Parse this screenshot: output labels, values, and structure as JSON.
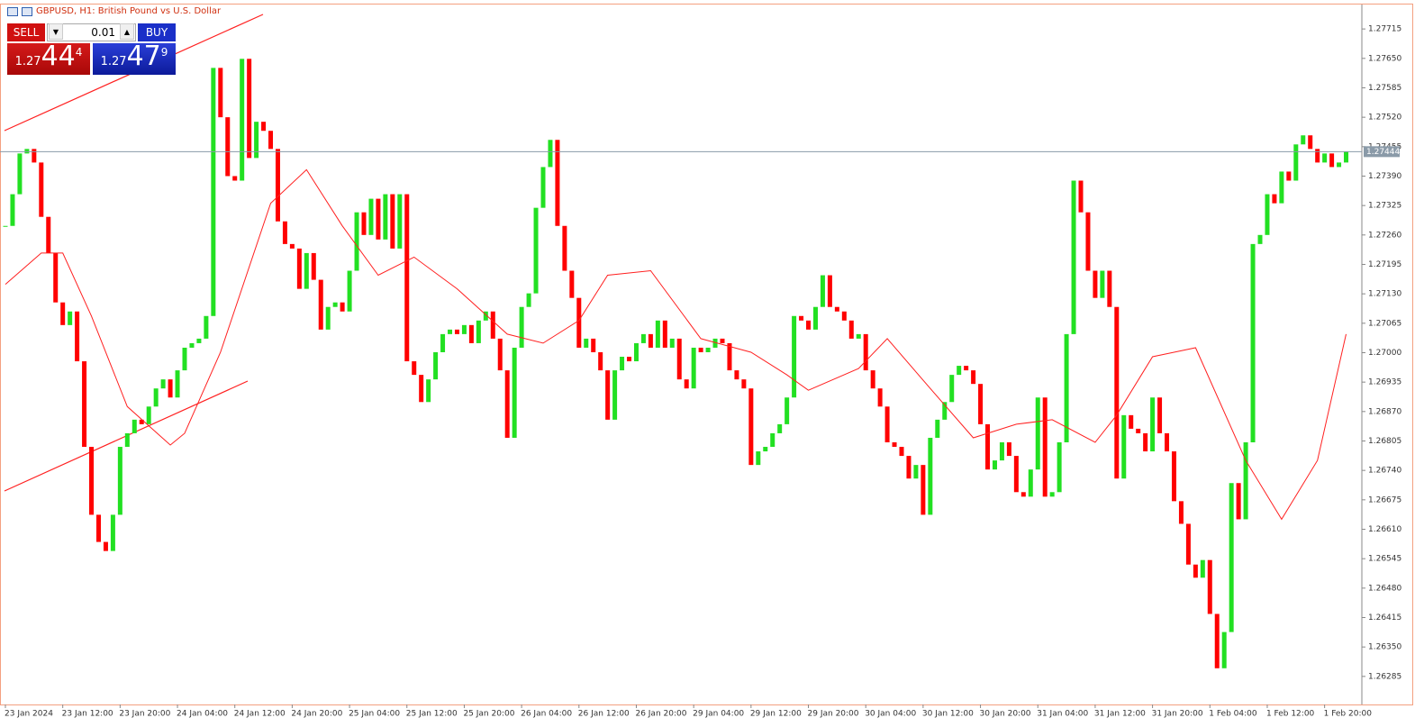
{
  "chart_data": {
    "type": "candlestick",
    "title": "GBPUSD, H1:  British Pound vs U.S. Dollar",
    "up_color": "#22e022",
    "down_color": "#ff0000",
    "close": [
      1.2728,
      1.2735,
      1.2744,
      1.2745,
      1.2742,
      1.273,
      1.2722,
      1.27111,
      1.27061,
      1.27091,
      1.26981,
      1.26792,
      1.26642,
      1.26582,
      1.26562,
      1.26642,
      1.26792,
      1.26822,
      1.26852,
      1.26842,
      1.26881,
      1.26921,
      1.26941,
      1.26901,
      1.26961,
      1.27011,
      1.27021,
      1.27031,
      1.27081,
      1.27629,
      1.2752,
      1.2739,
      1.2738,
      1.27649,
      1.2743,
      1.2751,
      1.2749,
      1.2745,
      1.2729,
      1.2724,
      1.2723,
      1.27141,
      1.2722,
      1.27161,
      1.27051,
      1.27101,
      1.27111,
      1.27091,
      1.27181,
      1.2731,
      1.2726,
      1.2734,
      1.2725,
      1.2735,
      1.2723,
      1.2735,
      1.26981,
      1.26951,
      1.26891,
      1.26941,
      1.27001,
      1.27041,
      1.27051,
      1.27041,
      1.27061,
      1.27021,
      1.27071,
      1.27091,
      1.27031,
      1.26961,
      1.26812,
      1.27011,
      1.27101,
      1.27131,
      1.2732,
      1.2741,
      1.2747,
      1.2728,
      1.27181,
      1.27121,
      1.27011,
      1.27031,
      1.27001,
      1.26961,
      1.26852,
      1.26961,
      1.26991,
      1.26981,
      1.27021,
      1.27041,
      1.27011,
      1.27071,
      1.27011,
      1.27031,
      1.26941,
      1.26921,
      1.27011,
      1.27001,
      1.27011,
      1.27031,
      1.27021,
      1.26961,
      1.26941,
      1.26921,
      1.26752,
      1.26782,
      1.26792,
      1.26822,
      1.26842,
      1.26901,
      1.27081,
      1.27071,
      1.27051,
      1.27101,
      1.27171,
      1.27101,
      1.27091,
      1.27071,
      1.27031,
      1.27041,
      1.26961,
      1.26921,
      1.26881,
      1.26802,
      1.26792,
      1.26772,
      1.26722,
      1.26752,
      1.26642,
      1.26812,
      1.26852,
      1.26891,
      1.26951,
      1.26971,
      1.26961,
      1.26931,
      1.26842,
      1.26742,
      1.26762,
      1.26802,
      1.26772,
      1.26692,
      1.26682,
      1.26742,
      1.26901,
      1.26682,
      1.26692,
      1.26802,
      1.27041,
      1.2738,
      1.2731,
      1.27181,
      1.27121,
      1.27181,
      1.27101,
      1.26722,
      1.26862,
      1.26832,
      1.26822,
      1.26782,
      1.26901,
      1.26822,
      1.26782,
      1.26672,
      1.26622,
      1.26532,
      1.26503,
      1.26542,
      1.26423,
      1.26303,
      1.26383,
      1.26712,
      1.26632,
      1.26802,
      1.2724,
      1.2726,
      1.2735,
      1.2733,
      1.274,
      1.2738,
      1.2746,
      1.2748,
      1.2745,
      1.2742,
      1.2744,
      1.2741,
      1.2742,
      1.27444
    ],
    "ma_color": "#ff2020",
    "ma_index": [
      0,
      5,
      8,
      12,
      17,
      23,
      25,
      30,
      37,
      42,
      47,
      52,
      57,
      63,
      70,
      75,
      80,
      84,
      90,
      97,
      104,
      109,
      112,
      119,
      123,
      129,
      135,
      141,
      146,
      152,
      155,
      160,
      163,
      166,
      173,
      178,
      183,
      187
    ],
    "ma_values": [
      1.27151,
      1.2722,
      1.2722,
      1.27081,
      1.26881,
      1.26796,
      1.26822,
      1.27001,
      1.2733,
      1.27404,
      1.2728,
      1.27171,
      1.27211,
      1.27141,
      1.27041,
      1.27021,
      1.27071,
      1.27171,
      1.27181,
      1.27031,
      1.27001,
      1.26951,
      1.26917,
      1.26965,
      1.27031,
      1.26921,
      1.26812,
      1.26842,
      1.26852,
      1.26802,
      1.26862,
      1.26991,
      1.27001,
      1.27011,
      1.26762,
      1.26632,
      1.26762,
      1.27041
    ],
    "last_price": 1.27444,
    "ylim": [
      1.26223,
      1.27769
    ],
    "yticks": [
      1.27715,
      {
        "value": 1.2765,
        "label": "1.27650"
      },
      1.27585,
      {
        "value": 1.2752,
        "label": "1.27520"
      },
      1.27455,
      {
        "value": 1.2739,
        "label": "1.27390"
      },
      1.27325,
      {
        "value": 1.2726,
        "label": "1.27260"
      },
      1.27195,
      {
        "value": 1.2713,
        "label": "1.27130"
      },
      1.27065,
      {
        "value": 1.27,
        "label": "1.27000"
      },
      1.26935,
      {
        "value": 1.2687,
        "label": "1.26870"
      },
      1.26805,
      {
        "value": 1.2674,
        "label": "1.26740"
      },
      1.26675,
      {
        "value": 1.2661,
        "label": "1.26610"
      },
      1.26545,
      {
        "value": 1.2648,
        "label": "1.26480"
      },
      1.26415,
      {
        "value": 1.2635,
        "label": "1.26350"
      },
      1.26285
    ],
    "xticks": [
      {
        "value": 0,
        "label": "23 Jan 2024"
      },
      {
        "value": 8,
        "label": "23 Jan 12:00"
      },
      {
        "value": 16,
        "label": "23 Jan 20:00"
      },
      {
        "value": 24,
        "label": "24 Jan 04:00"
      },
      {
        "value": 32,
        "label": "24 Jan 12:00"
      },
      {
        "value": 40,
        "label": "24 Jan 20:00"
      },
      {
        "value": 48,
        "label": "25 Jan 04:00"
      },
      {
        "value": 56,
        "label": "25 Jan 12:00"
      },
      {
        "value": 64,
        "label": "25 Jan 20:00"
      },
      {
        "value": 72,
        "label": "26 Jan 04:00"
      },
      {
        "value": 80,
        "label": "26 Jan 12:00"
      },
      {
        "value": 88,
        "label": "26 Jan 20:00"
      },
      {
        "value": 96,
        "label": "29 Jan 04:00"
      },
      {
        "value": 104,
        "label": "29 Jan 12:00"
      },
      {
        "value": 112,
        "label": "29 Jan 20:00"
      },
      {
        "value": 120,
        "label": "30 Jan 04:00"
      },
      {
        "value": 128,
        "label": "30 Jan 12:00"
      },
      {
        "value": 136,
        "label": "30 Jan 20:00"
      },
      {
        "value": 144,
        "label": "31 Jan 04:00"
      },
      {
        "value": 152,
        "label": "31 Jan 12:00"
      },
      {
        "value": 160,
        "label": "31 Jan 20:00"
      },
      {
        "value": 168,
        "label": "1 Feb 04:00"
      },
      {
        "value": 176,
        "label": "1 Feb 12:00"
      },
      {
        "value": 184,
        "label": "1 Feb 20:00"
      }
    ]
  },
  "trade_panel": {
    "sell": "SELL",
    "buy": "BUY",
    "lot": "0.01",
    "sell_price": {
      "prefix": "1.27",
      "big": "44",
      "sup": "4"
    },
    "buy_price": {
      "prefix": "1.27",
      "big": "47",
      "sup": "9"
    }
  }
}
